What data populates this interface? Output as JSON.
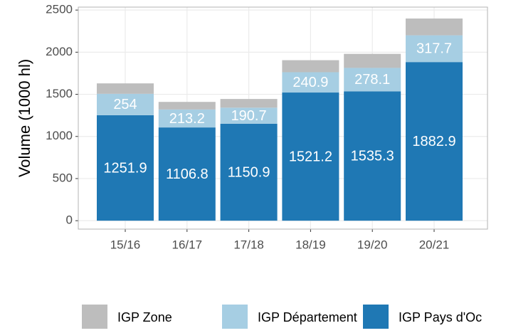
{
  "chart_data": {
    "type": "stacked_bar",
    "y_label": "Volume (1000 hl)",
    "categories": [
      "15/16",
      "16/17",
      "17/18",
      "18/19",
      "19/20",
      "20/21"
    ],
    "series": [
      {
        "name": "IGP Pays d'Oc",
        "color": "#1f78b4",
        "values": [
          1251.9,
          1106.8,
          1150.9,
          1521.2,
          1535.3,
          1882.9
        ]
      },
      {
        "name": "IGP Département",
        "color": "#a6cee3",
        "values": [
          254,
          213.2,
          190.7,
          240.9,
          278.1,
          317.7
        ]
      },
      {
        "name": "IGP Zone",
        "color": "#bdbdbd",
        "values": [
          124,
          90,
          103,
          143,
          167,
          199
        ]
      }
    ],
    "labeled_series": [
      0,
      1
    ],
    "ylim": [
      -100,
      2535
    ],
    "yticks": [
      0,
      500,
      1000,
      1500,
      2000,
      2500
    ],
    "grid": true,
    "legend": "bottom"
  }
}
